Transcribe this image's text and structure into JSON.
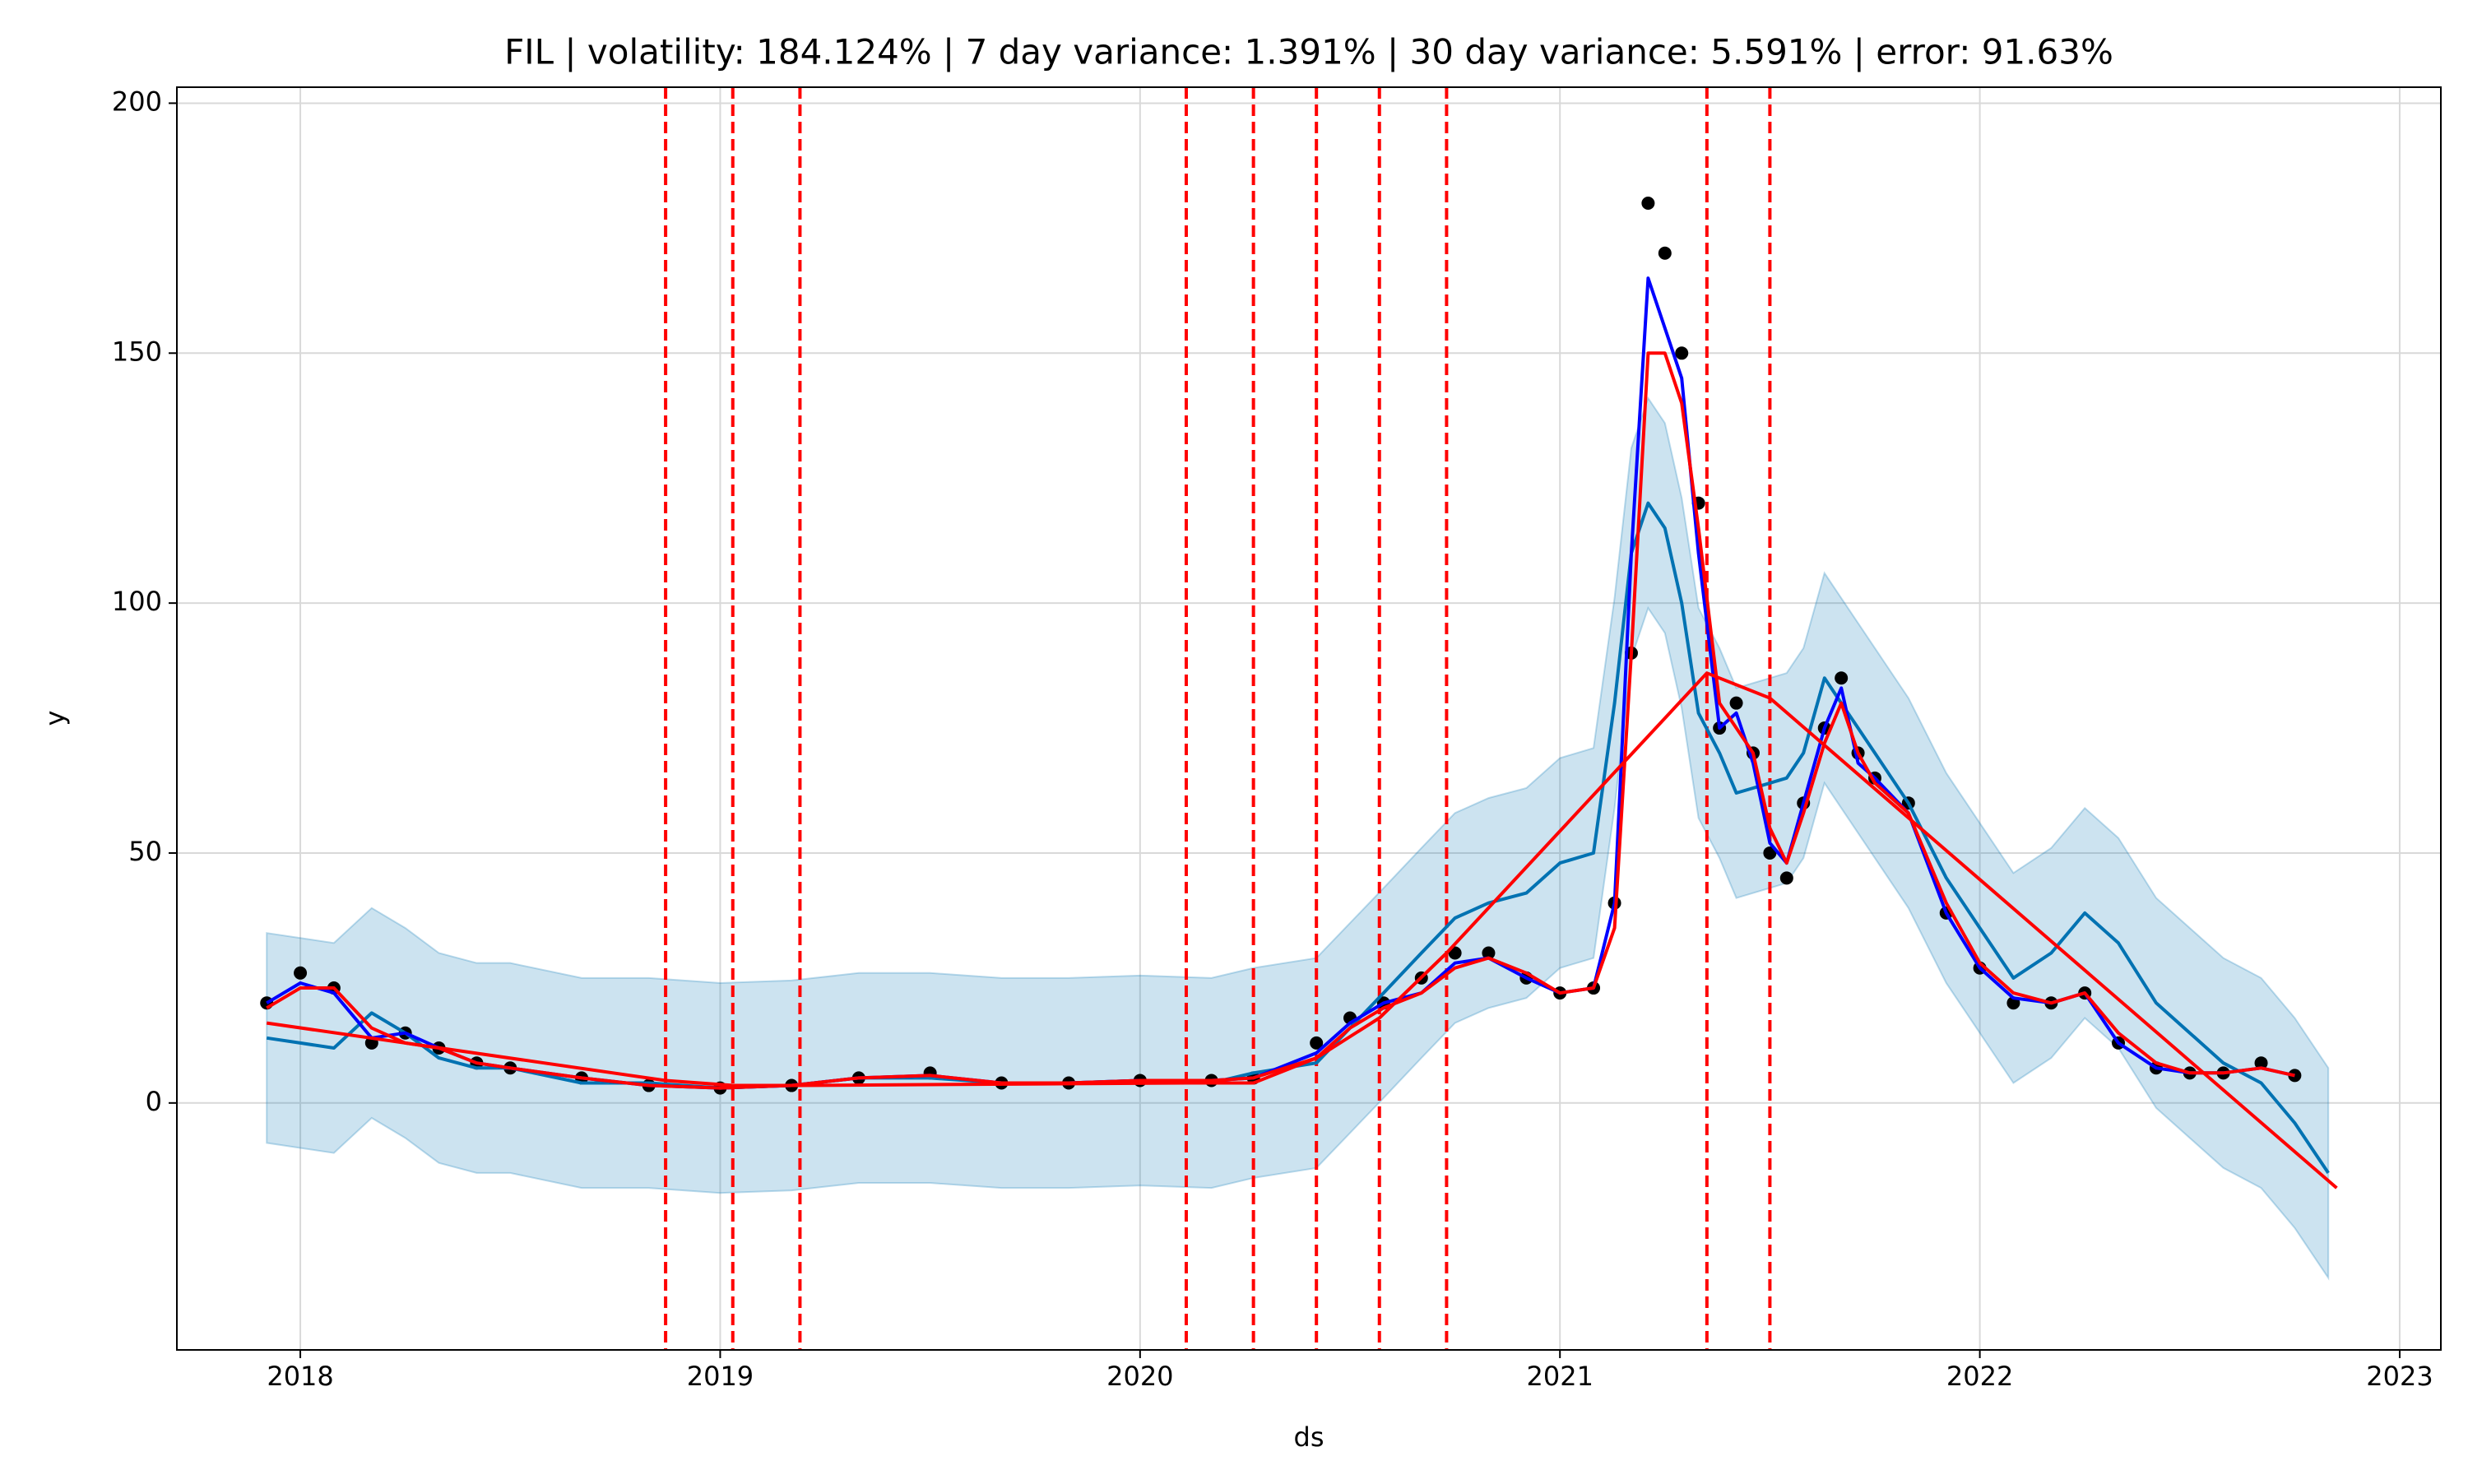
{
  "chart_data": {
    "type": "line",
    "title": "FIL | volatility: 184.124% | 7 day variance: 1.391% | 30 day variance: 5.591% | error: 91.63%",
    "xlabel": "ds",
    "ylabel": "y",
    "x": [
      2017.92,
      2018.0,
      2018.08,
      2018.17,
      2018.25,
      2018.33,
      2018.42,
      2018.5,
      2018.67,
      2018.83,
      2019.0,
      2019.17,
      2019.33,
      2019.5,
      2019.67,
      2019.83,
      2020.0,
      2020.17,
      2020.27,
      2020.42,
      2020.5,
      2020.58,
      2020.67,
      2020.75,
      2020.83,
      2020.92,
      2021.0,
      2021.08,
      2021.13,
      2021.17,
      2021.21,
      2021.25,
      2021.29,
      2021.33,
      2021.38,
      2021.42,
      2021.46,
      2021.5,
      2021.54,
      2021.58,
      2021.63,
      2021.67,
      2021.71,
      2021.75,
      2021.83,
      2021.92,
      2022.0,
      2022.08,
      2022.17,
      2022.25,
      2022.33,
      2022.42,
      2022.5,
      2022.58,
      2022.67,
      2022.75,
      2022.83
    ],
    "xlim": [
      2017.706,
      2023.098
    ],
    "xticks": [
      2018,
      2019,
      2020,
      2021,
      2022,
      2023
    ],
    "ylim": [
      -49.4,
      203.2
    ],
    "yticks": [
      0,
      50,
      100,
      150,
      200
    ],
    "grid": true,
    "band": {
      "color": "#0072B2",
      "upper": [
        34,
        33,
        32,
        39,
        35,
        30,
        28,
        28,
        25,
        25,
        24,
        24.5,
        26,
        26,
        25,
        25,
        25.5,
        25,
        27,
        29,
        36,
        43,
        51,
        58,
        61,
        63,
        69,
        71,
        101,
        131,
        141,
        136,
        121,
        99,
        91,
        83,
        84,
        85,
        86,
        91,
        106,
        101,
        96,
        91,
        81,
        66,
        56,
        46,
        51,
        59,
        53,
        41,
        35,
        29,
        25,
        17,
        7
      ],
      "lower": [
        -8,
        -9,
        -10,
        -3,
        -7,
        -12,
        -14,
        -14,
        -17,
        -17,
        -18,
        -17.5,
        -16,
        -16,
        -17,
        -17,
        -16.5,
        -17,
        -15,
        -13,
        -6,
        1,
        9,
        16,
        19,
        21,
        27,
        29,
        59,
        89,
        99,
        94,
        79,
        57,
        49,
        41,
        42,
        43,
        44,
        49,
        64,
        59,
        54,
        49,
        39,
        24,
        14,
        4,
        9,
        17,
        11,
        -1,
        -7,
        -13,
        -17,
        -25,
        -35
      ]
    },
    "series": [
      {
        "kind": "scatter",
        "color": "#000000",
        "values": [
          20,
          26,
          23,
          12,
          14,
          11,
          8,
          7,
          5,
          3.5,
          3,
          3.5,
          5,
          6,
          4,
          4,
          4.5,
          4.5,
          5,
          12,
          17,
          20,
          25,
          30,
          30,
          25,
          22,
          23,
          40,
          90,
          180,
          170,
          150,
          120,
          75,
          80,
          70,
          50,
          45,
          60,
          75,
          85,
          70,
          65,
          60,
          38,
          27,
          20,
          20,
          22,
          12,
          7,
          6,
          6,
          8,
          5.5,
          null
        ]
      },
      {
        "kind": "line",
        "color": "#0072B2",
        "values": [
          13,
          12,
          11,
          18,
          14,
          9,
          7,
          7,
          4,
          4,
          3,
          3.5,
          5,
          5,
          4,
          4,
          4.5,
          4,
          6,
          8,
          15,
          22,
          30,
          37,
          40,
          42,
          48,
          50,
          80,
          110,
          120,
          115,
          100,
          78,
          70,
          62,
          63,
          64,
          65,
          70,
          85,
          80,
          75,
          70,
          60,
          45,
          35,
          25,
          30,
          38,
          32,
          20,
          14,
          8,
          4,
          -4,
          -14
        ]
      },
      {
        "kind": "line",
        "color": "#0000ff",
        "values": [
          20,
          24,
          22,
          13,
          14,
          11,
          8,
          7,
          5,
          3.5,
          3,
          3.5,
          5,
          5.5,
          4,
          4,
          4.5,
          4.5,
          5,
          10,
          16,
          20,
          22,
          28,
          29,
          25,
          22,
          23,
          40,
          110,
          165,
          155,
          145,
          110,
          75,
          78,
          68,
          52,
          48,
          60,
          75,
          83,
          68,
          65,
          58,
          38,
          27,
          21,
          20,
          22,
          12,
          7,
          6,
          6,
          7,
          5.5,
          null
        ]
      },
      {
        "kind": "line",
        "color": "#ff0000",
        "values": [
          19,
          23,
          23,
          15,
          12,
          11,
          8,
          7,
          5,
          3.5,
          3,
          3.5,
          5,
          5.5,
          4,
          4,
          4.5,
          4.5,
          5,
          9,
          15,
          19,
          22,
          27,
          29,
          26,
          22,
          23,
          35,
          90,
          150,
          150,
          140,
          115,
          80,
          75,
          70,
          55,
          48,
          58,
          72,
          80,
          70,
          64,
          58,
          40,
          28,
          22,
          20,
          22,
          14,
          8,
          6,
          6,
          7,
          5.5,
          null
        ]
      },
      {
        "kind": "line",
        "color": "#ff0000",
        "x": [
          2017.92,
          2018.87,
          2019.03,
          2019.19,
          2020.11,
          2020.27,
          2020.42,
          2020.57,
          2020.73,
          2021.35,
          2021.5,
          2022.85
        ],
        "values": [
          16,
          4.5,
          3.5,
          3.5,
          4,
          4,
          9,
          17,
          30,
          86,
          81,
          -17
        ]
      }
    ],
    "changepoints": {
      "color": "#ff0000",
      "x": [
        2018.87,
        2019.03,
        2019.19,
        2020.11,
        2020.27,
        2020.42,
        2020.57,
        2020.73,
        2021.35,
        2021.5
      ]
    }
  }
}
